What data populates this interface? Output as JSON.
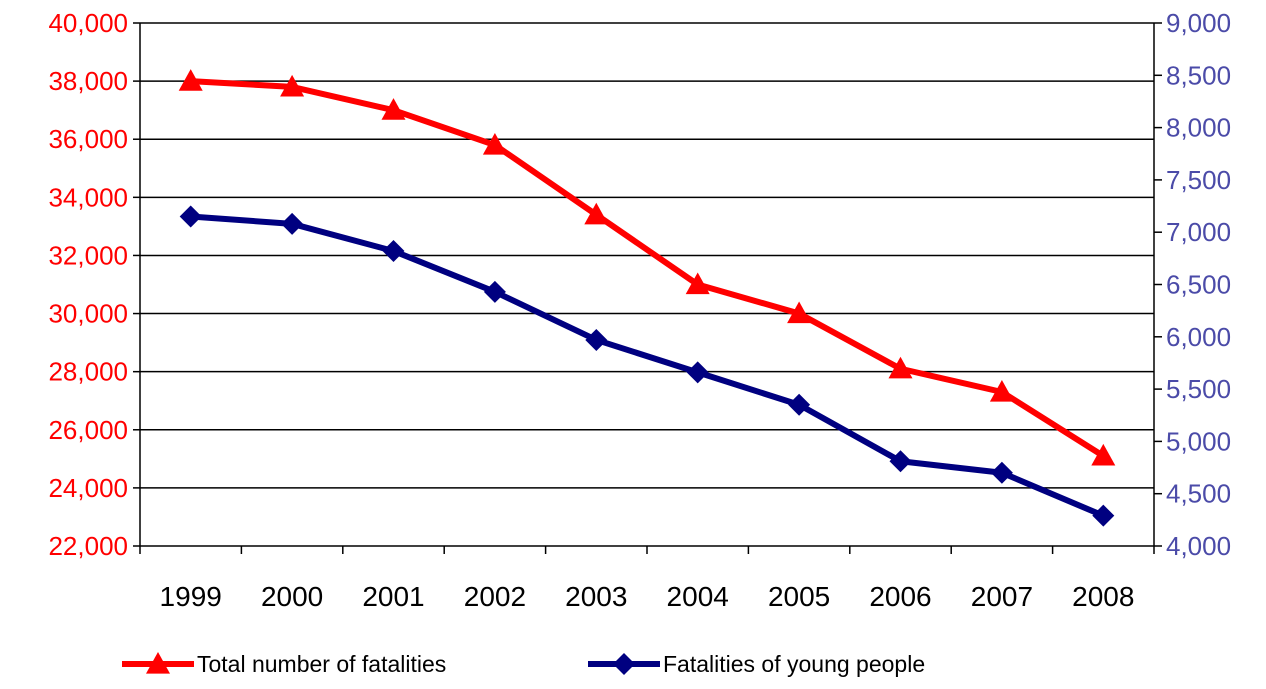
{
  "chart_data": {
    "type": "line",
    "categories": [
      "1999",
      "2000",
      "2001",
      "2002",
      "2003",
      "2004",
      "2005",
      "2006",
      "2007",
      "2008"
    ],
    "series": [
      {
        "name": "Total number of fatalities",
        "axis": "left",
        "color": "#ff0000",
        "marker": "triangle",
        "values": [
          38000,
          37800,
          37000,
          35800,
          33400,
          31000,
          30000,
          28100,
          27300,
          25100
        ]
      },
      {
        "name": "Fatalities of young people",
        "axis": "right",
        "color": "#000080",
        "marker": "diamond",
        "values": [
          7150,
          7080,
          6820,
          6430,
          5970,
          5660,
          5350,
          4810,
          4700,
          4290
        ]
      }
    ],
    "y_left": {
      "min": 22000,
      "max": 40000,
      "step": 2000,
      "tick_labels": [
        "22,000",
        "24,000",
        "26,000",
        "28,000",
        "30,000",
        "32,000",
        "34,000",
        "36,000",
        "38,000",
        "40,000"
      ],
      "label_color": "#ff0000"
    },
    "y_right": {
      "min": 4000,
      "max": 9000,
      "step": 500,
      "tick_labels": [
        "4,000",
        "4,500",
        "5,000",
        "5,500",
        "6,000",
        "6,500",
        "7,000",
        "7,500",
        "8,000",
        "8,500",
        "9,000"
      ],
      "label_color": "#4b4ba8"
    },
    "title": "",
    "xlabel": "",
    "grid": true,
    "legend_position": "bottom"
  }
}
